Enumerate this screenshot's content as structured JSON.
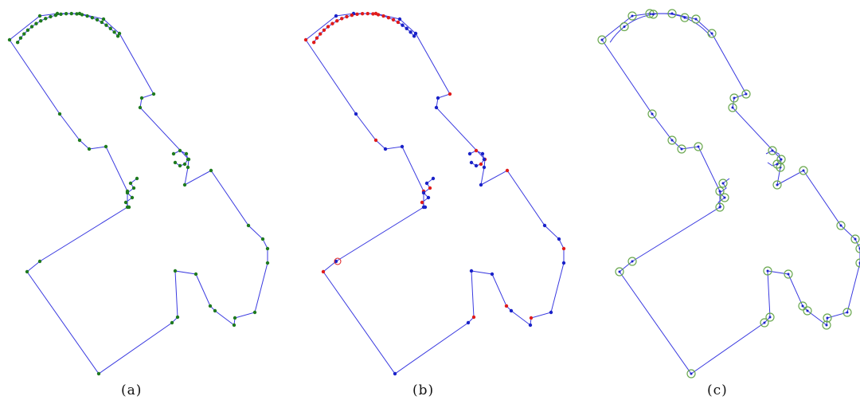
{
  "colors": {
    "outline": "#3a3ae0",
    "vertex_green": "#1e7a1e",
    "vertex_red": "#e01b1b",
    "vertex_blue": "#1a22c8",
    "marker_circle": "#6aa84f"
  },
  "panels": [
    {
      "caption": "(a)"
    },
    {
      "caption": "(b)"
    },
    {
      "caption": "(c)"
    }
  ]
}
